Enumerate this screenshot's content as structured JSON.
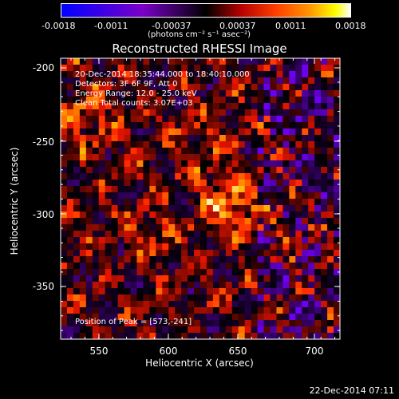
{
  "colorbar": {
    "tick_labels": [
      "-0.0018",
      "-0.0011",
      "-0.00037",
      "0.00037",
      "0.0011",
      "0.0018"
    ],
    "unit_label": "(photons cm⁻² s⁻¹ asec⁻²)"
  },
  "image": {
    "title": "Reconstructed RHESSI Image",
    "xlabel": "Heliocentric X (arcsec)",
    "ylabel": "Heliocentric Y (arcsec)",
    "x_ticks": [
      "550",
      "600",
      "650",
      "700"
    ],
    "y_ticks": [
      "-200",
      "-250",
      "-300",
      "-350"
    ],
    "annotations": [
      "20-Dec-2014 18:35:44.000 to 18:40:10.000",
      "Detectors: 3F 6F 9F, Att 0",
      "Energy Range: 12.0 - 25.0 keV",
      "Clean     Total counts: 3.07E+03"
    ],
    "peak_label": "Position of Peak = [573,-241]"
  },
  "footer": {
    "timestamp": "22-Dec-2014 07:11"
  }
}
